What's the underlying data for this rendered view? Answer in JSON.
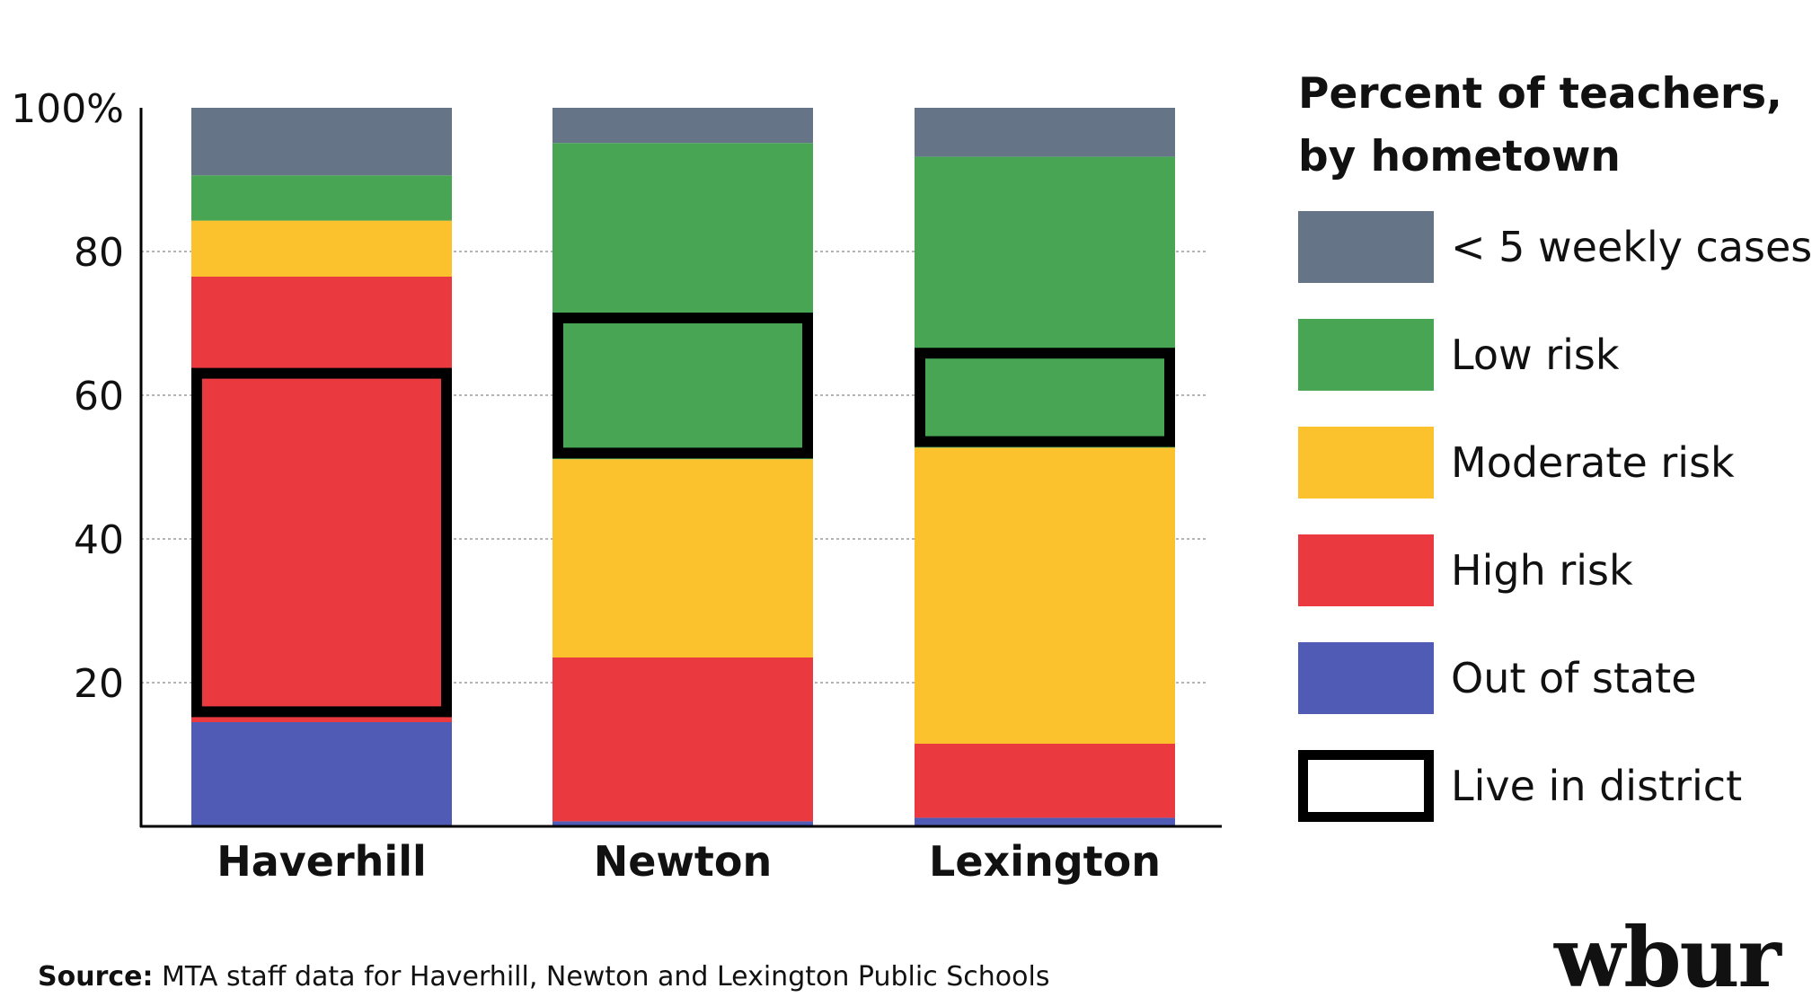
{
  "chart_data": {
    "type": "bar",
    "stacked": true,
    "title": "Percent of teachers, by hometown",
    "categories": [
      "Haverhill",
      "Newton",
      "Lexington"
    ],
    "ylim": [
      0,
      100
    ],
    "yticks": [
      "20",
      "40",
      "60",
      "80",
      "100%"
    ],
    "ytick_values": [
      20,
      40,
      60,
      80,
      100
    ],
    "grid": "dotted horizontal",
    "legend_position": "right",
    "series": [
      {
        "name": "Out of state",
        "color": "#4f5bb5",
        "values": [
          14.5,
          0.7,
          1.2
        ]
      },
      {
        "name": "High risk",
        "color": "#ea3a40",
        "values": [
          62,
          22.8,
          10.3
        ]
      },
      {
        "name": "Moderate risk",
        "color": "#fbc22d",
        "values": [
          7.8,
          27.6,
          41.2
        ]
      },
      {
        "name": "Low risk",
        "color": "#47a553",
        "values": [
          6.3,
          44.0,
          40.5
        ]
      },
      {
        "name": "< 5 weekly cases",
        "color": "#667487",
        "values": [
          9.4,
          4.9,
          6.8
        ]
      }
    ],
    "live_in_district": [
      {
        "category": "Haverhill",
        "range": [
          15.2,
          63.8
        ]
      },
      {
        "category": "Newton",
        "range": [
          51.2,
          71.5
        ]
      },
      {
        "category": "Lexington",
        "range": [
          52.8,
          66.6
        ]
      }
    ],
    "legend_outline_label": "Live in district"
  },
  "source": {
    "label": "Source:",
    "text": " MTA staff data for Haverhill, Newton and Lexington Public Schools"
  },
  "brand": {
    "logo_text": "wbur"
  }
}
